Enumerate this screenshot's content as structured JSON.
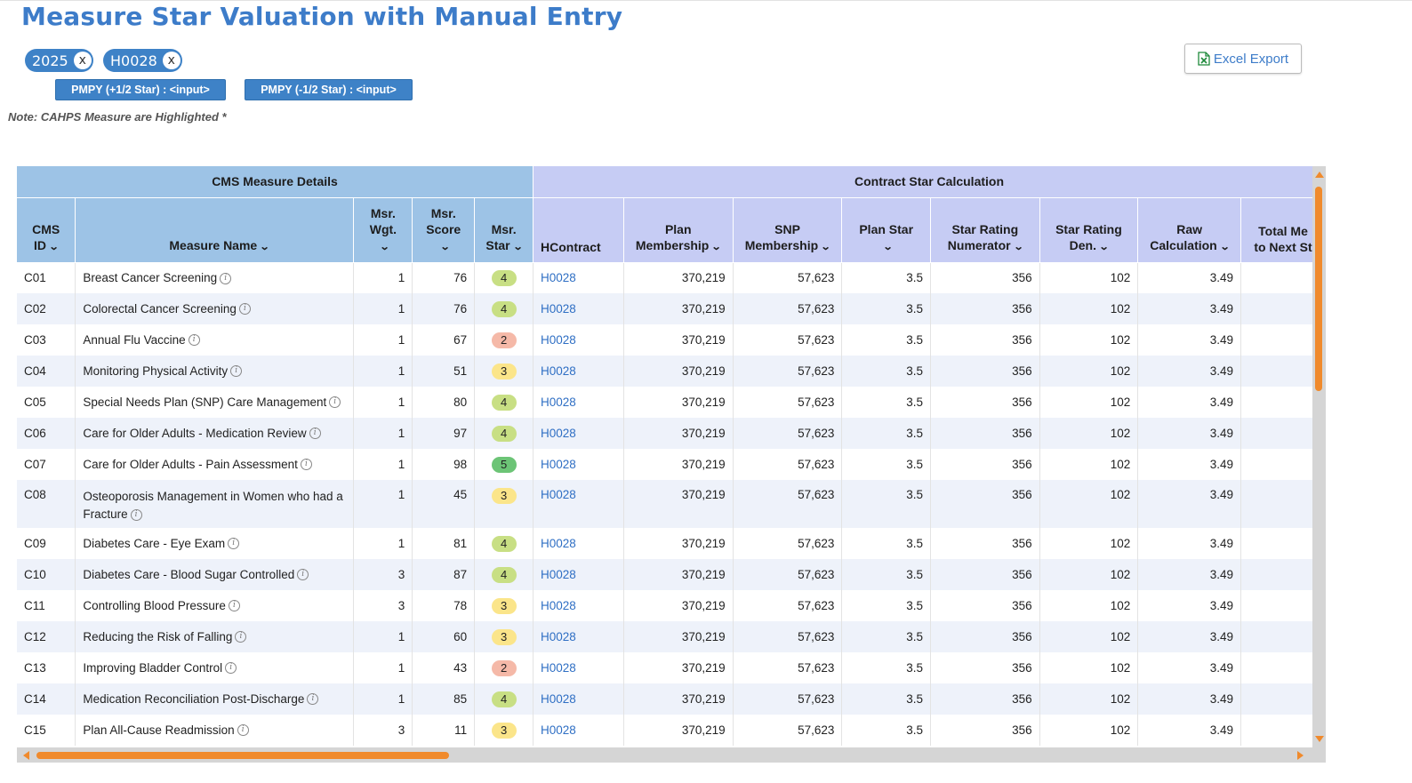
{
  "page": {
    "title": "Measure Star Valuation with Manual Entry",
    "note": "Note: CAHPS Measure are Highlighted *",
    "export_label": "Excel Export"
  },
  "filters": [
    {
      "label": "2025",
      "remove": "x"
    },
    {
      "label": "H0028",
      "remove": "x"
    }
  ],
  "pmpy": {
    "plus_label": "PMPY (+1/2 Star) : <input>",
    "minus_label": "PMPY (-1/2 Star) : <input>"
  },
  "grid": {
    "group_left": "CMS Measure Details",
    "group_right": "Contract Star Calculation",
    "columns": {
      "cms_id": [
        "CMS",
        "ID"
      ],
      "measure_name": "Measure Name",
      "wgt": [
        "Msr.",
        "Wgt."
      ],
      "score": [
        "Msr.",
        "Score"
      ],
      "star": [
        "Msr.",
        "Star"
      ],
      "hcontract": "HContract",
      "plan_membership": [
        "Plan",
        "Membership"
      ],
      "snp_membership": [
        "SNP",
        "Membership"
      ],
      "plan_star": "Plan Star",
      "numerator": [
        "Star Rating",
        "Numerator"
      ],
      "denominator": [
        "Star Rating",
        "Den."
      ],
      "raw": [
        "Raw",
        "Calculation"
      ],
      "total": [
        "Total Me",
        "to Next St"
      ]
    },
    "rows": [
      {
        "id": "C01",
        "name": "Breast Cancer Screening",
        "wgt": "1",
        "score": "76",
        "star": "4",
        "hcontract": "H0028",
        "plan_membership": "370,219",
        "snp_membership": "57,623",
        "plan_star": "3.5",
        "numerator": "356",
        "denominator": "102",
        "raw": "3.49"
      },
      {
        "id": "C02",
        "name": "Colorectal Cancer Screening",
        "wgt": "1",
        "score": "76",
        "star": "4",
        "hcontract": "H0028",
        "plan_membership": "370,219",
        "snp_membership": "57,623",
        "plan_star": "3.5",
        "numerator": "356",
        "denominator": "102",
        "raw": "3.49"
      },
      {
        "id": "C03",
        "name": "Annual Flu Vaccine",
        "wgt": "1",
        "score": "67",
        "star": "2",
        "hcontract": "H0028",
        "plan_membership": "370,219",
        "snp_membership": "57,623",
        "plan_star": "3.5",
        "numerator": "356",
        "denominator": "102",
        "raw": "3.49"
      },
      {
        "id": "C04",
        "name": "Monitoring Physical Activity",
        "wgt": "1",
        "score": "51",
        "star": "3",
        "hcontract": "H0028",
        "plan_membership": "370,219",
        "snp_membership": "57,623",
        "plan_star": "3.5",
        "numerator": "356",
        "denominator": "102",
        "raw": "3.49"
      },
      {
        "id": "C05",
        "name": "Special Needs Plan (SNP) Care Management",
        "wgt": "1",
        "score": "80",
        "star": "4",
        "hcontract": "H0028",
        "plan_membership": "370,219",
        "snp_membership": "57,623",
        "plan_star": "3.5",
        "numerator": "356",
        "denominator": "102",
        "raw": "3.49"
      },
      {
        "id": "C06",
        "name": "Care for Older Adults - Medication Review",
        "wgt": "1",
        "score": "97",
        "star": "4",
        "hcontract": "H0028",
        "plan_membership": "370,219",
        "snp_membership": "57,623",
        "plan_star": "3.5",
        "numerator": "356",
        "denominator": "102",
        "raw": "3.49"
      },
      {
        "id": "C07",
        "name": "Care for Older Adults - Pain Assessment",
        "wgt": "1",
        "score": "98",
        "star": "5",
        "hcontract": "H0028",
        "plan_membership": "370,219",
        "snp_membership": "57,623",
        "plan_star": "3.5",
        "numerator": "356",
        "denominator": "102",
        "raw": "3.49"
      },
      {
        "id": "C08",
        "name": "Osteoporosis Management in Women who had a Fracture",
        "wgt": "1",
        "score": "45",
        "star": "3",
        "hcontract": "H0028",
        "plan_membership": "370,219",
        "snp_membership": "57,623",
        "plan_star": "3.5",
        "numerator": "356",
        "denominator": "102",
        "raw": "3.49"
      },
      {
        "id": "C09",
        "name": "Diabetes Care - Eye Exam",
        "wgt": "1",
        "score": "81",
        "star": "4",
        "hcontract": "H0028",
        "plan_membership": "370,219",
        "snp_membership": "57,623",
        "plan_star": "3.5",
        "numerator": "356",
        "denominator": "102",
        "raw": "3.49"
      },
      {
        "id": "C10",
        "name": "Diabetes Care - Blood Sugar Controlled",
        "wgt": "3",
        "score": "87",
        "star": "4",
        "hcontract": "H0028",
        "plan_membership": "370,219",
        "snp_membership": "57,623",
        "plan_star": "3.5",
        "numerator": "356",
        "denominator": "102",
        "raw": "3.49"
      },
      {
        "id": "C11",
        "name": "Controlling Blood Pressure",
        "wgt": "3",
        "score": "78",
        "star": "3",
        "hcontract": "H0028",
        "plan_membership": "370,219",
        "snp_membership": "57,623",
        "plan_star": "3.5",
        "numerator": "356",
        "denominator": "102",
        "raw": "3.49"
      },
      {
        "id": "C12",
        "name": "Reducing the Risk of Falling",
        "wgt": "1",
        "score": "60",
        "star": "3",
        "hcontract": "H0028",
        "plan_membership": "370,219",
        "snp_membership": "57,623",
        "plan_star": "3.5",
        "numerator": "356",
        "denominator": "102",
        "raw": "3.49"
      },
      {
        "id": "C13",
        "name": "Improving Bladder Control",
        "wgt": "1",
        "score": "43",
        "star": "2",
        "hcontract": "H0028",
        "plan_membership": "370,219",
        "snp_membership": "57,623",
        "plan_star": "3.5",
        "numerator": "356",
        "denominator": "102",
        "raw": "3.49"
      },
      {
        "id": "C14",
        "name": "Medication Reconciliation Post-Discharge",
        "wgt": "1",
        "score": "85",
        "star": "4",
        "hcontract": "H0028",
        "plan_membership": "370,219",
        "snp_membership": "57,623",
        "plan_star": "3.5",
        "numerator": "356",
        "denominator": "102",
        "raw": "3.49"
      },
      {
        "id": "C15",
        "name": "Plan All-Cause Readmission",
        "wgt": "3",
        "score": "11",
        "star": "3",
        "hcontract": "H0028",
        "plan_membership": "370,219",
        "snp_membership": "57,623",
        "plan_star": "3.5",
        "numerator": "356",
        "denominator": "102",
        "raw": "3.49"
      }
    ]
  },
  "star_colors": {
    "2": "#f5b9a8",
    "3": "#fbe58a",
    "4": "#c8df84",
    "5": "#6cc476"
  },
  "colors": {
    "accent": "#3e82c7",
    "title": "#3d7cc9",
    "scroll": "#f08a2c",
    "group_left": "#9dc3e6",
    "group_right": "#c6ccf4",
    "link": "#2f6fc4"
  },
  "icons": {
    "export": "excel-file-icon",
    "info": "info-icon",
    "sort": "chevron-down-icon"
  }
}
